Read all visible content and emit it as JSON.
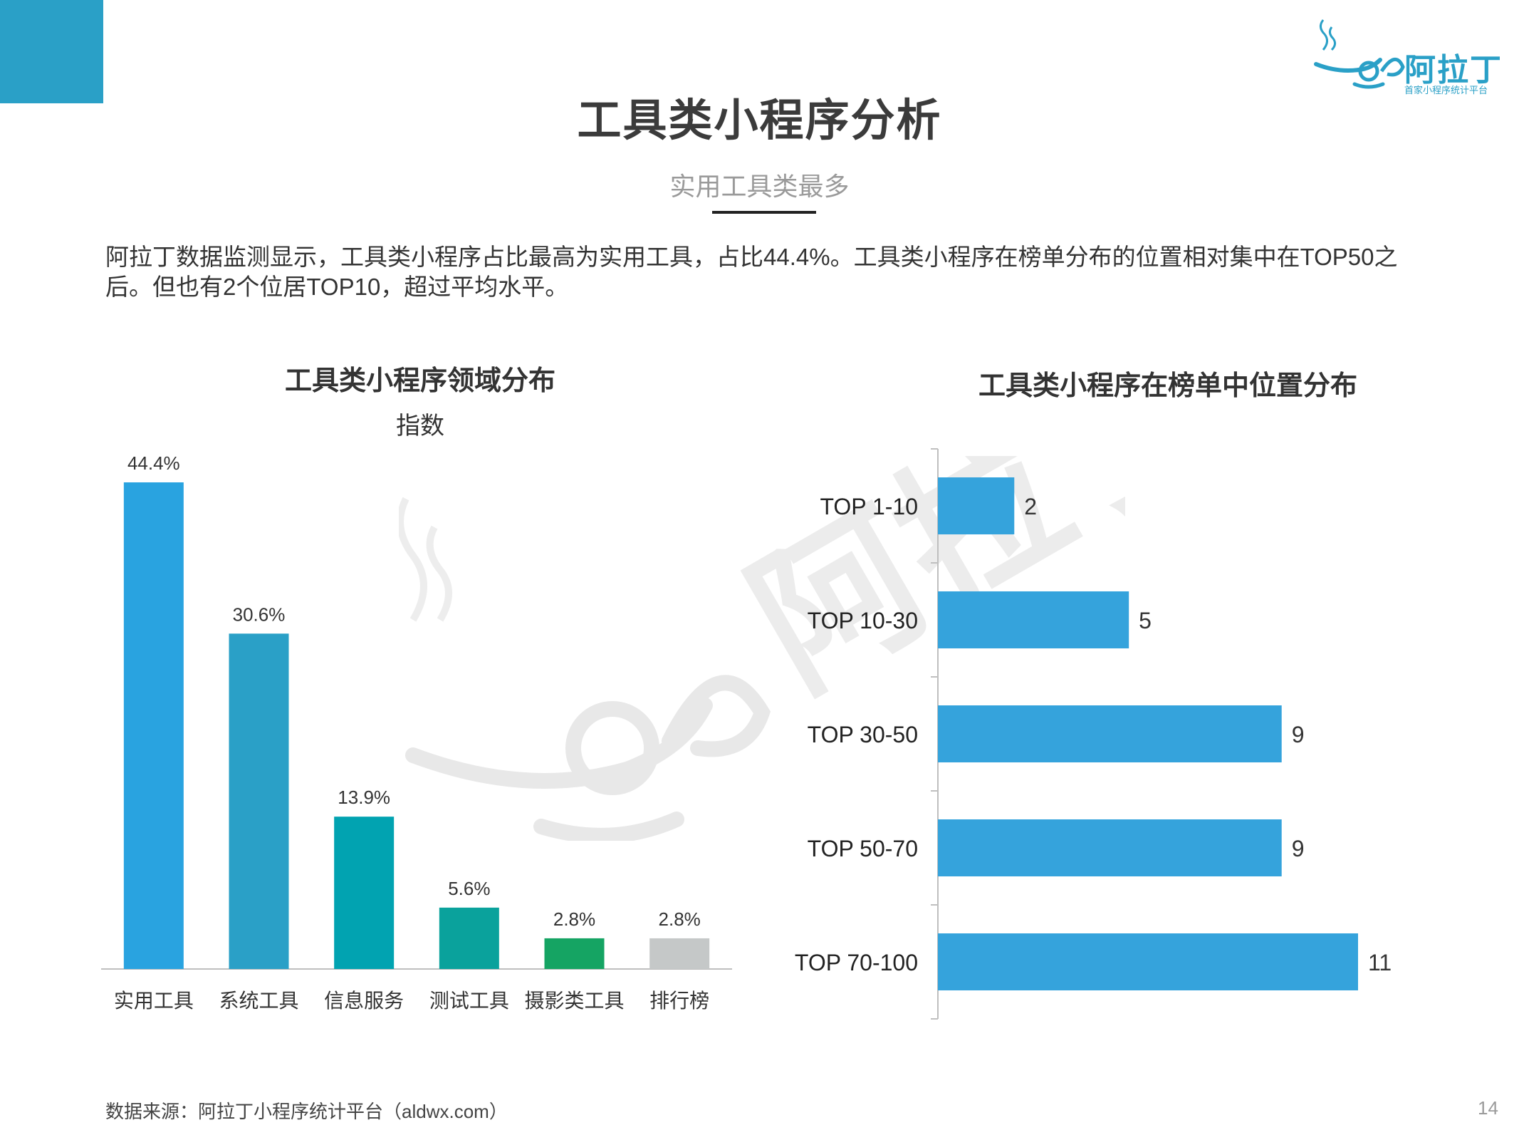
{
  "header": {
    "corner_color": "#2aa0c7",
    "logo": {
      "name": "阿拉丁",
      "tagline": "首家小程序统计平台",
      "icon": "magic-lamp-icon"
    },
    "title": "工具类小程序分析",
    "subtitle": "实用工具类最多"
  },
  "description": "阿拉丁数据监测显示，工具类小程序占比最高为实用工具，占比44.4%。工具类小程序在榜单分布的位置相对集中在TOP50之后。但也有2个位居TOP10，超过平均水平。",
  "chart_data": [
    {
      "type": "bar",
      "title": "工具类小程序领域分布",
      "subtitle": "指数",
      "categories": [
        "实用工具",
        "系统工具",
        "信息服务",
        "测试工具",
        "摄影类工具",
        "排行榜"
      ],
      "values": [
        44.4,
        30.6,
        13.9,
        5.6,
        2.8,
        2.8
      ],
      "value_labels": [
        "44.4%",
        "30.6%",
        "13.9%",
        "5.6%",
        "2.8%",
        "2.8%"
      ],
      "colors": [
        "#29a3e0",
        "#2aa0c7",
        "#01a3b1",
        "#0aa29c",
        "#15a463",
        "#c5c8c8"
      ],
      "ylim": [
        0,
        44.4
      ],
      "grid": false
    },
    {
      "type": "bar",
      "orientation": "horizontal",
      "title": "工具类小程序在榜单中位置分布",
      "categories": [
        "TOP 1-10",
        "TOP 10-30",
        "TOP 30-50",
        "TOP 50-70",
        "TOP 70-100"
      ],
      "values": [
        2,
        5,
        9,
        9,
        11
      ],
      "value_labels": [
        "2",
        "5",
        "9",
        "9",
        "11"
      ],
      "color": "#35a3dc",
      "xlim": [
        0,
        11
      ],
      "grid": false
    }
  ],
  "footer": {
    "source": "数据来源：阿拉丁小程序统计平台（aldwx.com）",
    "page_number": "14"
  }
}
